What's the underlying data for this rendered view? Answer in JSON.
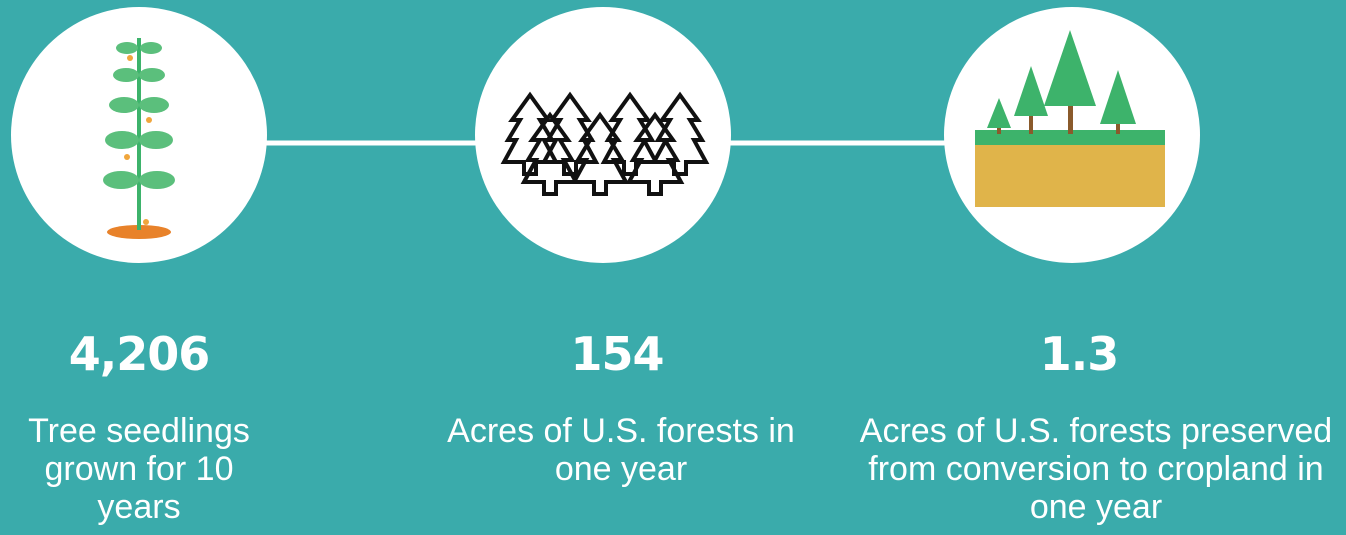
{
  "stats": [
    {
      "value": "4,206",
      "label": "Tree seedlings grown for 10 years"
    },
    {
      "value": "154",
      "label": "Acres of U.S. forests in one year"
    },
    {
      "value": "1.3",
      "label": "Acres of U.S. forests preserved from conversion to cropland in one year"
    }
  ]
}
